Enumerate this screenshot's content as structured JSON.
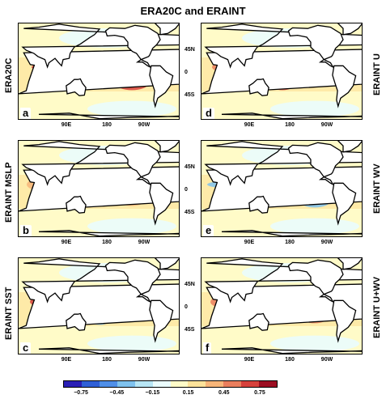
{
  "title": "ERA20C and ERAINT",
  "row_labels_left": [
    "ERA20C",
    "ERAINT MSLP",
    "ERAINT SST"
  ],
  "row_labels_right": [
    "ERAINT U",
    "ERAINT WV",
    "ERAINT U+WV"
  ],
  "panels": [
    {
      "letter": "a",
      "pattern": 0
    },
    {
      "letter": "d",
      "pattern": 1
    },
    {
      "letter": "b",
      "pattern": 2
    },
    {
      "letter": "e",
      "pattern": 3
    },
    {
      "letter": "c",
      "pattern": 4
    },
    {
      "letter": "f",
      "pattern": 5
    }
  ],
  "x_ticks": [
    "90E",
    "180",
    "90W"
  ],
  "y_ticks": [
    "45N",
    "0",
    "45S"
  ],
  "colorbar": {
    "colors": [
      "#2a1fb5",
      "#2f5fd6",
      "#4f8fe8",
      "#7fc2ee",
      "#b8e6f5",
      "#eafcfd",
      "#fffbc8",
      "#fde29a",
      "#f7b579",
      "#ea7e5d",
      "#d6413c",
      "#9c0e22"
    ],
    "tick_labels": [
      "−0.75",
      "−0.45",
      "−0.15",
      "0.15",
      "0.45",
      "0.75"
    ]
  }
}
